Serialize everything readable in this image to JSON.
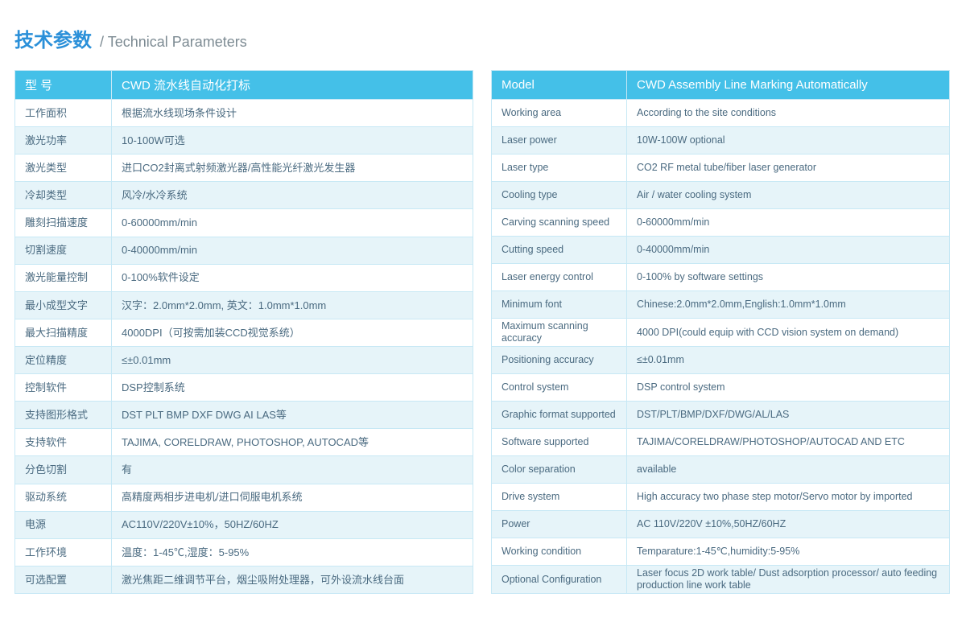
{
  "title": {
    "cn": "技术参数",
    "sep": "/",
    "en": "Technical Parameters"
  },
  "cn": {
    "header_label": "型  号",
    "header_value": "CWD 流水线自动化打标",
    "rows": [
      {
        "label": "工作面积",
        "value": "根据流水线现场条件设计"
      },
      {
        "label": "激光功率",
        "value": "10-100W可选"
      },
      {
        "label": "激光类型",
        "value": "进口CO2封离式射频激光器/高性能光纤激光发生器"
      },
      {
        "label": "冷却类型",
        "value": "风冷/水冷系统"
      },
      {
        "label": "雕刻扫描速度",
        "value": "0-60000mm/min"
      },
      {
        "label": "切割速度",
        "value": "0-40000mm/min"
      },
      {
        "label": "激光能量控制",
        "value": "0-100%软件设定"
      },
      {
        "label": "最小成型文字",
        "value": "汉字：2.0mm*2.0mm, 英文：1.0mm*1.0mm"
      },
      {
        "label": "最大扫描精度",
        "value": "4000DPI（可按需加装CCD视觉系统）"
      },
      {
        "label": "定位精度",
        "value": "≤±0.01mm"
      },
      {
        "label": "控制软件",
        "value": "DSP控制系统"
      },
      {
        "label": "支持图形格式",
        "value": "DST PLT BMP DXF DWG AI LAS等"
      },
      {
        "label": "支持软件",
        "value": "TAJIMA, CORELDRAW, PHOTOSHOP, AUTOCAD等"
      },
      {
        "label": "分色切割",
        "value": "有"
      },
      {
        "label": "驱动系统",
        "value": "高精度两相步进电机/进口伺服电机系统"
      },
      {
        "label": "电源",
        "value": "AC110V/220V±10%，50HZ/60HZ"
      },
      {
        "label": "工作环境",
        "value": "温度：1-45℃,湿度：5-95%"
      },
      {
        "label": "可选配置",
        "value": "激光焦距二维调节平台，烟尘吸附处理器，可外设流水线台面"
      }
    ]
  },
  "en": {
    "header_label": "Model",
    "header_value": "CWD Assembly Line Marking Automatically",
    "rows": [
      {
        "label": "Working area",
        "value": "According to the site conditions"
      },
      {
        "label": "Laser power",
        "value": "10W-100W optional"
      },
      {
        "label": "Laser type",
        "value": "CO2 RF metal tube/fiber laser generator"
      },
      {
        "label": "Cooling type",
        "value": "Air / water cooling system"
      },
      {
        "label": "Carving scanning speed",
        "value": "0-60000mm/min"
      },
      {
        "label": "Cutting speed",
        "value": "0-40000mm/min"
      },
      {
        "label": "Laser energy control",
        "value": "0-100% by software settings"
      },
      {
        "label": "Minimum font",
        "value": "Chinese:2.0mm*2.0mm,English:1.0mm*1.0mm"
      },
      {
        "label": "Maximum scanning accuracy",
        "value": "4000 DPI(could equip with CCD vision system on demand)",
        "small": true
      },
      {
        "label": "Positioning accuracy",
        "value": "≤±0.01mm"
      },
      {
        "label": "Control system",
        "value": "DSP control system"
      },
      {
        "label": "Graphic format supported",
        "value": "DST/PLT/BMP/DXF/DWG/AL/LAS"
      },
      {
        "label": "Software supported",
        "value": "TAJIMA/CORELDRAW/PHOTOSHOP/AUTOCAD AND ETC"
      },
      {
        "label": "Color separation",
        "value": "available"
      },
      {
        "label": "Drive system",
        "value": "High accuracy two phase step motor/Servo motor by imported"
      },
      {
        "label": "Power",
        "value": "AC 110V/220V ±10%,50HZ/60HZ"
      },
      {
        "label": "Working condition",
        "value": "Temparature:1-45℃,humidity:5-95%"
      },
      {
        "label": "Optional Configuration",
        "value": "Laser focus 2D work table/ Dust adsorption processor/ auto feeding production line work table",
        "small": true
      }
    ]
  },
  "style": {
    "header_bg": "#44c0e8",
    "header_fg": "#ffffff",
    "row_even_bg": "#e6f4f9",
    "row_odd_bg": "#ffffff",
    "border_color": "#c7e8f5",
    "text_color": "#4a6a80",
    "title_cn_color": "#2b90d9",
    "title_en_color": "#7d8b93"
  }
}
